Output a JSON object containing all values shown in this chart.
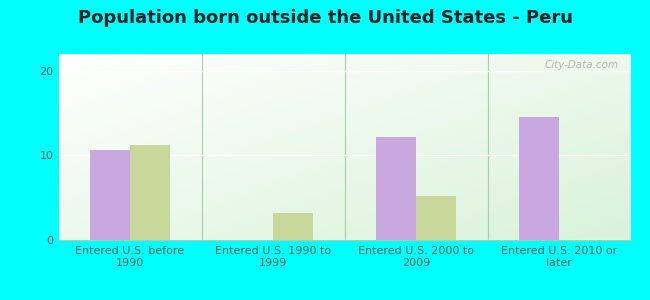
{
  "title": "Population born outside the United States - Peru",
  "categories": [
    "Entered U.S. before\n1990",
    "Entered U.S. 1990 to\n1999",
    "Entered U.S. 2000 to\n2009",
    "Entered U.S. 2010 or\nlater"
  ],
  "native_values": [
    10.7,
    0,
    12.2,
    14.5
  ],
  "foreign_values": [
    11.2,
    3.2,
    5.2,
    0
  ],
  "native_color": "#c9a8e0",
  "foreign_color": "#c8d89a",
  "bar_width": 0.28,
  "ylim": [
    0,
    22
  ],
  "yticks": [
    0,
    10,
    20
  ],
  "outer_background": "#00ffff",
  "plot_bg_left": "#c8e8c8",
  "plot_bg_right": "#f8fff8",
  "title_fontsize": 13,
  "tick_label_fontsize": 8,
  "tick_label_color": "#336655",
  "legend_fontsize": 9,
  "watermark_text": "City-Data.com",
  "divider_color": "#aaccaa",
  "grid_color": "#ddeecc",
  "spine_color": "#aaccaa"
}
